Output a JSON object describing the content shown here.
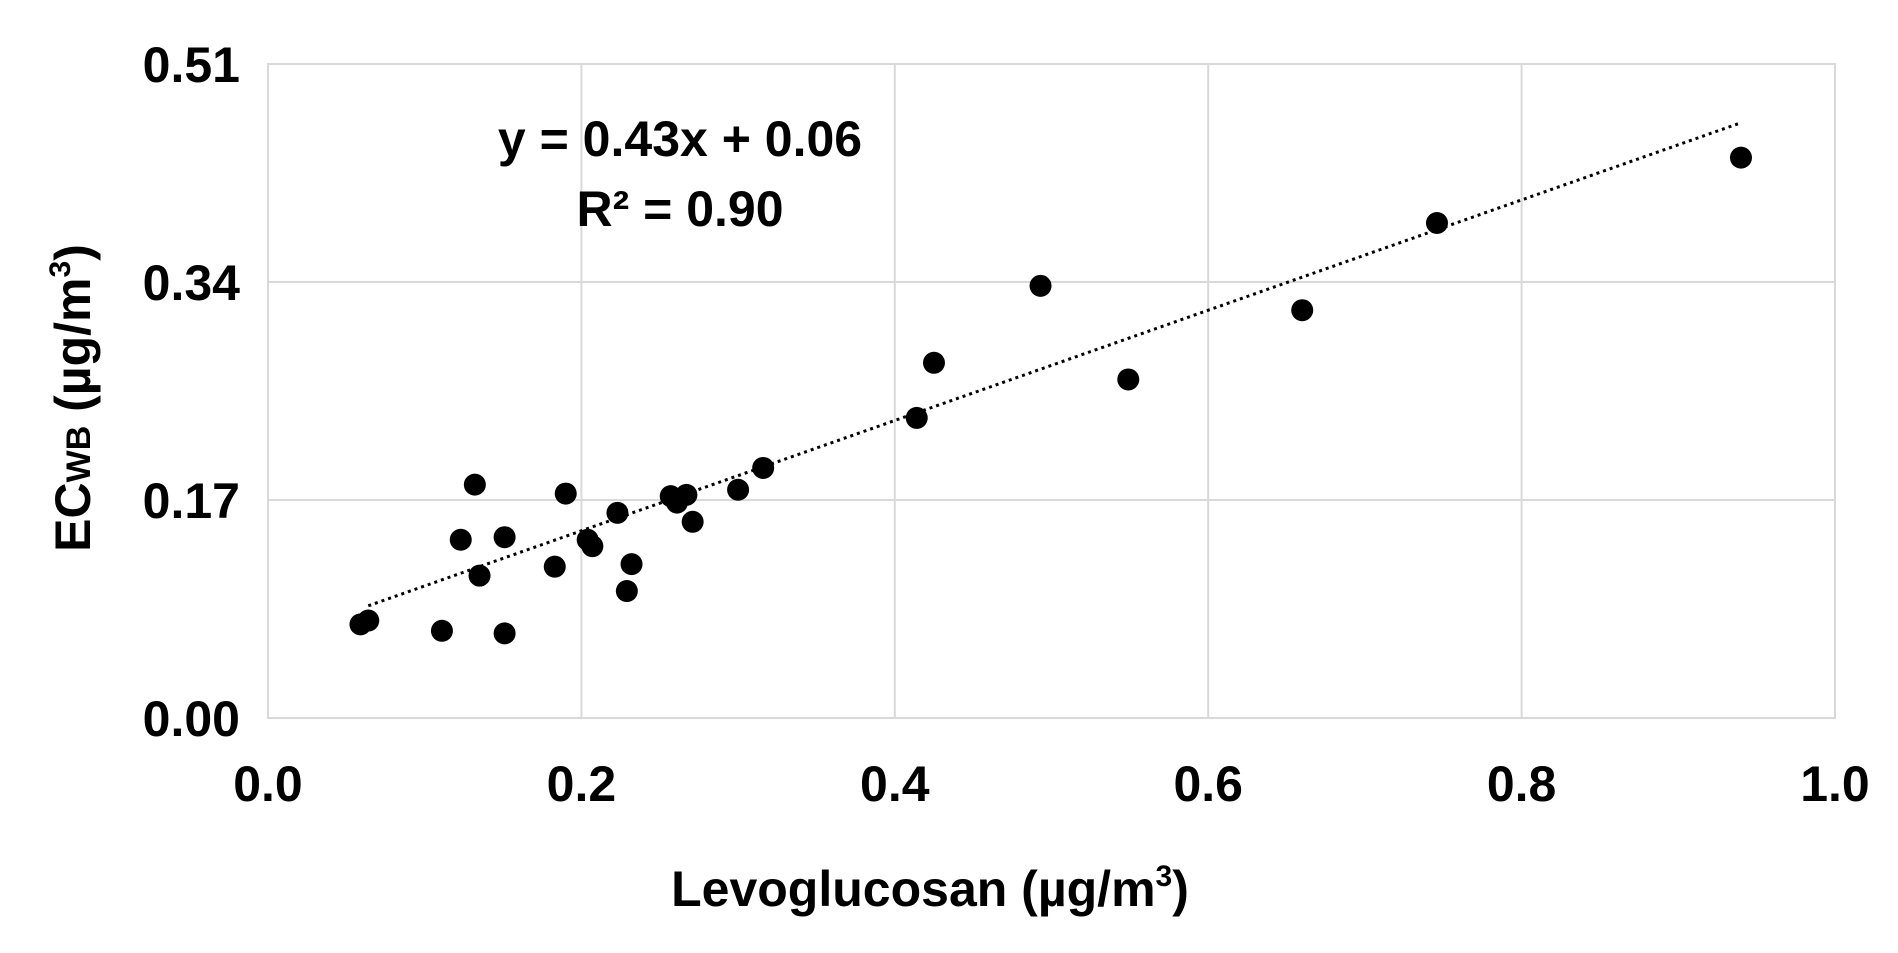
{
  "chart_data": {
    "type": "scatter",
    "title": "",
    "xlabel_parts": {
      "main": "Levoglucosan (µg/m",
      "sup": "3",
      "end": ")"
    },
    "ylabel_parts": {
      "main": "EC",
      "sub": "WB",
      "mid": " (µg/m",
      "sup": "3",
      "end": ")"
    },
    "xlim": [
      0.0,
      1.0
    ],
    "ylim": [
      0.0,
      0.51
    ],
    "x_ticks": [
      0.0,
      0.2,
      0.4,
      0.6,
      0.8,
      1.0
    ],
    "x_tick_labels": [
      "0.0",
      "0.2",
      "0.4",
      "0.6",
      "0.8",
      "1.0"
    ],
    "y_ticks": [
      0.0,
      0.17,
      0.34,
      0.51
    ],
    "y_tick_labels": [
      "0.00",
      "0.17",
      "0.34",
      "0.51"
    ],
    "grid": true,
    "points": [
      {
        "x": 0.059,
        "y": 0.073
      },
      {
        "x": 0.064,
        "y": 0.076
      },
      {
        "x": 0.111,
        "y": 0.068
      },
      {
        "x": 0.151,
        "y": 0.066
      },
      {
        "x": 0.123,
        "y": 0.139
      },
      {
        "x": 0.132,
        "y": 0.182
      },
      {
        "x": 0.135,
        "y": 0.111
      },
      {
        "x": 0.151,
        "y": 0.141
      },
      {
        "x": 0.183,
        "y": 0.118
      },
      {
        "x": 0.19,
        "y": 0.175
      },
      {
        "x": 0.204,
        "y": 0.139
      },
      {
        "x": 0.207,
        "y": 0.134
      },
      {
        "x": 0.223,
        "y": 0.16
      },
      {
        "x": 0.229,
        "y": 0.099
      },
      {
        "x": 0.232,
        "y": 0.12
      },
      {
        "x": 0.257,
        "y": 0.173
      },
      {
        "x": 0.261,
        "y": 0.168
      },
      {
        "x": 0.267,
        "y": 0.174
      },
      {
        "x": 0.271,
        "y": 0.153
      },
      {
        "x": 0.3,
        "y": 0.178
      },
      {
        "x": 0.316,
        "y": 0.195
      },
      {
        "x": 0.414,
        "y": 0.234
      },
      {
        "x": 0.425,
        "y": 0.277
      },
      {
        "x": 0.493,
        "y": 0.337
      },
      {
        "x": 0.549,
        "y": 0.264
      },
      {
        "x": 0.66,
        "y": 0.318
      },
      {
        "x": 0.746,
        "y": 0.386
      },
      {
        "x": 0.94,
        "y": 0.437
      }
    ],
    "trendline": {
      "style": "dotted",
      "slope": 0.43,
      "intercept": 0.06,
      "x_start": 0.064,
      "x_end": 0.94,
      "equation_label": "y = 0.43x + 0.06",
      "r2_label": "R² = 0.90"
    },
    "colors": {
      "marker": "#000000",
      "grid": "#d9d9d9",
      "axis": "#d9d9d9",
      "trendline": "#000000"
    }
  }
}
